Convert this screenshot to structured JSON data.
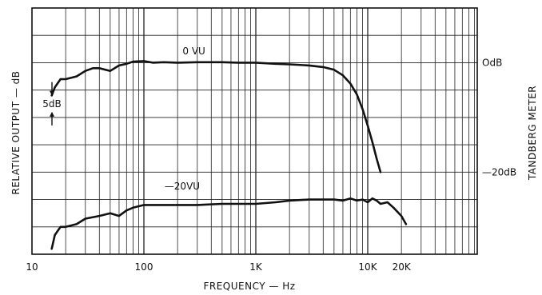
{
  "chart_data": {
    "type": "line",
    "title": "",
    "xlabel": "FREQUENCY — Hz",
    "ylabel": "RELATIVE OUTPUT — dB",
    "right_axis_label": "TANDBERG METER",
    "x_scale": "log",
    "xlim": [
      10,
      50000
    ],
    "ylim": [
      -35,
      10
    ],
    "grid": true,
    "x_tick_labels": [
      {
        "value": 10,
        "label": "10"
      },
      {
        "value": 100,
        "label": "100"
      },
      {
        "value": 1000,
        "label": "1K"
      },
      {
        "value": 10000,
        "label": "10K"
      },
      {
        "value": 20000,
        "label": "20K"
      }
    ],
    "right_tick_labels": [
      {
        "value": 0,
        "label": "OdB"
      },
      {
        "value": -20,
        "label": "—20dB"
      }
    ],
    "annotations": [
      {
        "text": "5dB",
        "y_from": -5,
        "y_to": -10
      }
    ],
    "series": [
      {
        "name": "0 VU",
        "x": [
          15,
          16,
          18,
          20,
          25,
          30,
          35,
          40,
          50,
          60,
          70,
          80,
          100,
          120,
          150,
          200,
          300,
          500,
          700,
          1000,
          1500,
          2000,
          3000,
          4000,
          5000,
          6000,
          7000,
          8000,
          9000,
          10000,
          11000,
          12000,
          13000
        ],
        "y": [
          -6.0,
          -4.5,
          -3.0,
          -3.0,
          -2.5,
          -1.5,
          -1.0,
          -1.0,
          -1.5,
          -0.5,
          -0.2,
          0.2,
          0.3,
          0,
          0.1,
          0,
          0.1,
          0.1,
          0,
          0,
          -0.2,
          -0.3,
          -0.5,
          -0.8,
          -1.3,
          -2.3,
          -3.8,
          -5.8,
          -8.5,
          -11.5,
          -14.5,
          -17.5,
          -20.0
        ]
      },
      {
        "name": "-20VU",
        "x": [
          15,
          16,
          18,
          20,
          25,
          30,
          40,
          50,
          60,
          70,
          80,
          100,
          120,
          150,
          200,
          300,
          500,
          700,
          1000,
          1500,
          2000,
          3000,
          4000,
          5000,
          6000,
          7000,
          8000,
          9000,
          10000,
          11000,
          12000,
          13000,
          15000,
          17000,
          20000,
          22000
        ],
        "y": [
          -34.0,
          -31.5,
          -30.0,
          -30.0,
          -29.5,
          -28.5,
          -28.0,
          -27.5,
          -28.0,
          -27.0,
          -26.5,
          -26.0,
          -26.0,
          -26.0,
          -26.0,
          -26.0,
          -25.8,
          -25.8,
          -25.8,
          -25.5,
          -25.2,
          -25.0,
          -25.0,
          -25.0,
          -25.2,
          -24.8,
          -25.2,
          -25.0,
          -25.5,
          -24.8,
          -25.2,
          -25.8,
          -25.5,
          -26.5,
          -28.0,
          -29.5
        ]
      }
    ],
    "series_labels": [
      {
        "text": "0 VU",
        "x": 280,
        "y": 1.5
      },
      {
        "text": "—20VU",
        "x": 220,
        "y": -23.2
      }
    ]
  }
}
